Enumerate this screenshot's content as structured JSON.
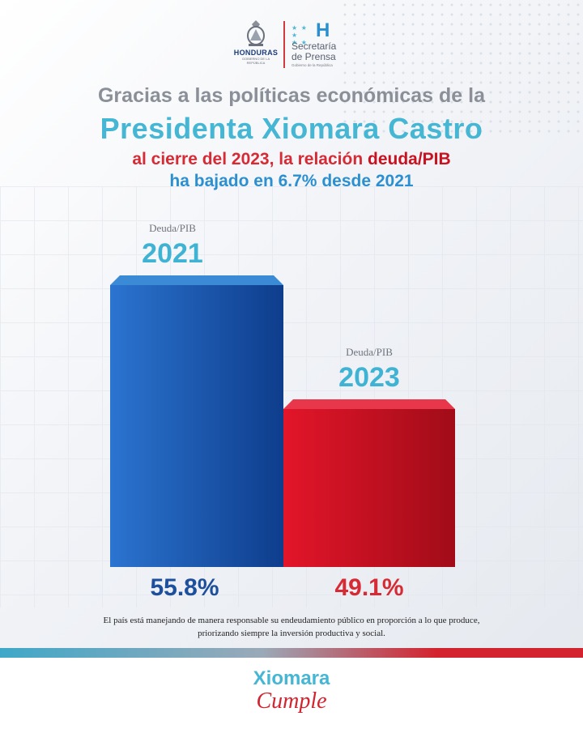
{
  "header": {
    "logo_left_label": "HONDURAS",
    "logo_left_sub": "GOBIERNO DE LA REPÚBLICA",
    "logo_right_mark": "H",
    "logo_right_line1": "Secretaría",
    "logo_right_line2": "de Prensa",
    "logo_right_line3": "Gobierno de la República"
  },
  "headline": {
    "line1": "Gracias a las políticas económicas de la",
    "line2": "Presidenta Xiomara Castro",
    "line3_a": "al cierre del 2023, la relación ",
    "line3_b": "deuda/PIB",
    "line4": "ha bajado en 6.7% desde 2021"
  },
  "colors": {
    "bar_2021": "#1f5fb5",
    "bar_2023": "#d3101f",
    "label_2021": "#1c4f9c",
    "label_2023": "#d62a35",
    "year_label": "#3fb3d4"
  },
  "chart_data": {
    "type": "bar",
    "categories": [
      "2021",
      "2023"
    ],
    "series_label": "Deuda/PIB",
    "values": [
      55.8,
      49.1
    ],
    "value_labels": [
      "55.8%",
      "49.1%"
    ],
    "title": "",
    "xlabel": "",
    "ylabel": "",
    "ylim": [
      0,
      60
    ]
  },
  "footer": {
    "note_line1": "El país está manejando de manera responsable su endeudamiento público en proporción a lo que produce,",
    "note_line2": "priorizando siempre la inversión productiva y social.",
    "brand_line1": "Xiomara",
    "brand_line2": "Cumple"
  }
}
